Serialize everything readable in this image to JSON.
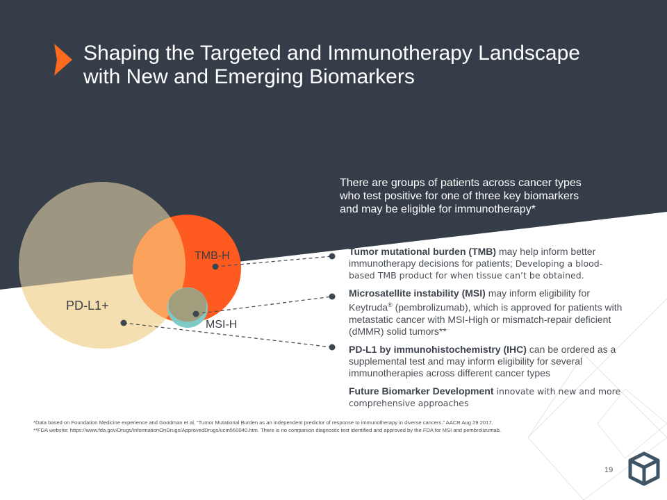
{
  "title": {
    "line1": "Shaping the Targeted and Immunotherapy Landscape",
    "line2": "with New and Emerging Biomarkers"
  },
  "intro": {
    "line1": "There are groups of patients across cancer types",
    "line2": "who test positive for one of three key biomarkers",
    "line3": "and may be eligible for immunotherapy*"
  },
  "venn": {
    "pdl1_label": "PD-L1+",
    "tmb_label": "TMB-H",
    "msi_label": "MSI-H"
  },
  "bullets": {
    "tmb_bold": "Tumor mutational burden (TMB)",
    "tmb_text": " may help inform better immunotherapy decisions for patients; ",
    "tmb_small": "Developing a blood-based TMB product for when tissue can’t be obtained.",
    "msi_bold": "Microsatellite instability (MSI)",
    "msi_text1": " may inform eligibility for Keytruda",
    "msi_reg": "®",
    "msi_text2": " (pembrolizumab), which is approved for patients with metastatic cancer with MSI-High or mismatch-repair deficient (dMMR) solid tumors**",
    "pdl1_bold": "PD-L1 by immunohistochemistry (IHC)",
    "pdl1_text": " can be ordered as a supplemental test and may inform eligibility for several immunotherapies across different cancer types",
    "future_bold": "Future Biomarker Development",
    "future_small": " innovate with new and more comprehensive approaches"
  },
  "footnotes": {
    "note1": "*Data based on Foundation Medicine experience and Goodman et al, “Tumor Mutational Burden as an independent predictor of response to immunotherapy in diverse cancers.” AACR Aug 29 2017.",
    "note2": "**FDA website: https://www.fda.gov/Drugs/InformationOnDrugs/ApprovedDrugs/ucm560040.htm. There is no companion diagnostic test identified and approved by the FDA for MSI and pembrolizumab."
  },
  "page_number": "19",
  "colors": {
    "dark_bg": "#343d48",
    "orange": "#ff5a1f",
    "tan": "#f4dfb1",
    "olive": "#9c8f6a",
    "teal": "#7ecbc6"
  },
  "icons": [
    "chevron-right-icon",
    "logo-icon"
  ]
}
